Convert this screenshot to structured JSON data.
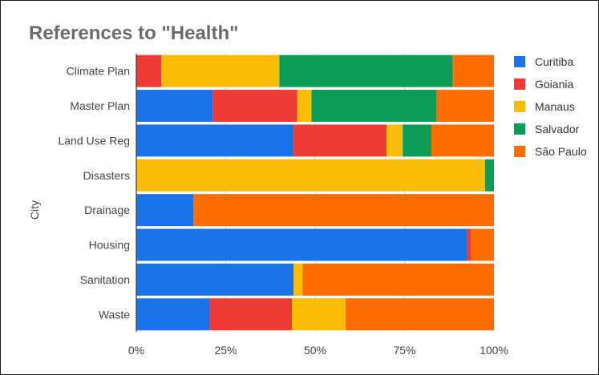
{
  "chart_data": {
    "type": "bar",
    "stacked": true,
    "orientation": "horizontal",
    "percent": true,
    "title": "References to \"Health\"",
    "ylabel": "City",
    "xlabel": "",
    "xlim": [
      0,
      100
    ],
    "x_ticks": [
      "0%",
      "25%",
      "50%",
      "75%",
      "100%"
    ],
    "grid": true,
    "legend_position": "right",
    "categories": [
      "Climate Plan",
      "Master Plan",
      "Land Use Reg",
      "Disasters",
      "Drainage",
      "Housing",
      "Sanitation",
      "Waste"
    ],
    "series": [
      {
        "name": "Curitiba",
        "color": "#1a73e8",
        "values": [
          0,
          21.5,
          44,
          0,
          16,
          92.5,
          44,
          20.5
        ]
      },
      {
        "name": "Goiania",
        "color": "#ef3b36",
        "values": [
          7,
          23.5,
          26,
          0,
          0,
          1,
          0,
          23
        ]
      },
      {
        "name": "Manaus",
        "color": "#fbbc05",
        "values": [
          33,
          4,
          4.5,
          97.5,
          0,
          0,
          2.5,
          15
        ]
      },
      {
        "name": "Salvador",
        "color": "#0b9d58",
        "values": [
          48.5,
          35,
          8,
          2.5,
          0,
          0,
          0,
          0
        ]
      },
      {
        "name": "São Paulo",
        "color": "#ff6d00",
        "values": [
          11.5,
          16,
          17.5,
          0,
          84,
          6.5,
          53.5,
          41.5
        ]
      }
    ]
  }
}
